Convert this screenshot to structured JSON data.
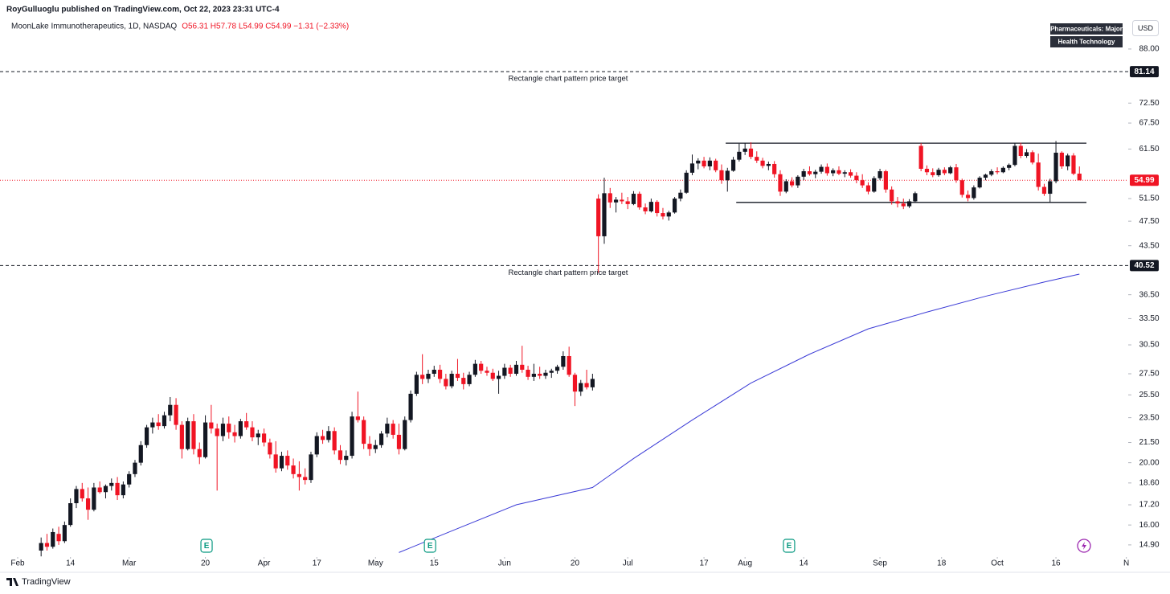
{
  "header": {
    "publisher": "RoyGulluoglu published on TradingView.com, Oct 22, 2023 23:31 UTC-4",
    "symbol": "MoonLake Immunotherapeutics, 1D, NASDAQ",
    "ohlc": "O56.31 H57.78 L54.99 C54.99 −1.31 (−2.33%)"
  },
  "tags": [
    "Pharmaceuticals: Major",
    "Health Technology"
  ],
  "currency": "USD",
  "footer": "TradingView",
  "chart_data": {
    "type": "candlestick",
    "log_scale": true,
    "up_color": "#131722",
    "down_color": "#f01424",
    "xlim": [
      -3.01,
      189.32
    ],
    "ylim": [
      14.39,
      96.2
    ],
    "xticks": [
      {
        "value": 0,
        "label": "Feb"
      },
      {
        "value": 9,
        "label": "14"
      },
      {
        "value": 19,
        "label": "Mar"
      },
      {
        "value": 32,
        "label": "20"
      },
      {
        "value": 42,
        "label": "Apr"
      },
      {
        "value": 51,
        "label": "17"
      },
      {
        "value": 61,
        "label": "May"
      },
      {
        "value": 71,
        "label": "15"
      },
      {
        "value": 83,
        "label": "Jun"
      },
      {
        "value": 95,
        "label": "20"
      },
      {
        "value": 104,
        "label": "Jul"
      },
      {
        "value": 117,
        "label": "17"
      },
      {
        "value": 124,
        "label": "Aug"
      },
      {
        "value": 134,
        "label": "14"
      },
      {
        "value": 147,
        "label": "Sep"
      },
      {
        "value": 157.5,
        "label": "18"
      },
      {
        "value": 167,
        "label": "Oct"
      },
      {
        "value": 177,
        "label": "16"
      },
      {
        "value": 189,
        "label": "N"
      }
    ],
    "yticks": [
      {
        "value": 88,
        "label": "88.00"
      },
      {
        "value": 72.5,
        "label": "72.50"
      },
      {
        "value": 67.5,
        "label": "67.50"
      },
      {
        "value": 61.5,
        "label": "61.50"
      },
      {
        "value": 51.5,
        "label": "51.50"
      },
      {
        "value": 47.5,
        "label": "47.50"
      },
      {
        "value": 43.5,
        "label": "43.50"
      },
      {
        "value": 36.5,
        "label": "36.50"
      },
      {
        "value": 33.5,
        "label": "33.50"
      },
      {
        "value": 30.5,
        "label": "30.50"
      },
      {
        "value": 27.5,
        "label": "27.50"
      },
      {
        "value": 25.5,
        "label": "25.50"
      },
      {
        "value": 23.5,
        "label": "23.50"
      },
      {
        "value": 21.5,
        "label": "21.50"
      },
      {
        "value": 20,
        "label": "20.00"
      },
      {
        "value": 18.6,
        "label": "18.60"
      },
      {
        "value": 17.2,
        "label": "17.20"
      },
      {
        "value": 16,
        "label": "16.00"
      },
      {
        "value": 14.9,
        "label": "14.90"
      }
    ],
    "x": [
      4,
      5,
      6,
      7,
      8,
      9,
      10,
      11,
      12,
      13,
      14,
      15,
      16,
      17,
      18,
      19,
      20,
      21,
      22,
      23,
      24,
      25,
      26,
      27,
      28,
      29,
      30,
      31,
      32,
      33,
      34,
      35,
      36,
      37,
      38,
      39,
      40,
      41,
      42,
      43,
      44,
      45,
      46,
      47,
      48,
      49,
      50,
      51,
      52,
      53,
      54,
      55,
      56,
      57,
      58,
      59,
      60,
      61,
      62,
      63,
      64,
      65,
      66,
      67,
      68,
      69,
      70,
      71,
      72,
      73,
      74,
      75,
      76,
      77,
      78,
      79,
      80,
      81,
      82,
      83,
      84,
      85,
      86,
      87,
      88,
      89,
      90,
      91,
      92,
      93,
      94,
      95,
      96,
      97,
      98,
      99,
      100,
      101,
      102,
      103,
      104,
      105,
      106,
      107,
      108,
      109,
      110,
      111,
      112,
      113,
      114,
      115,
      116,
      117,
      118,
      119,
      120,
      121,
      122,
      123,
      124,
      125,
      126,
      127,
      128,
      129,
      130,
      131,
      132,
      133,
      134,
      135,
      136,
      137,
      138,
      139,
      140,
      141,
      142,
      143,
      144,
      145,
      146,
      147,
      148,
      149,
      150,
      151,
      152,
      153,
      154,
      155,
      156,
      157,
      158,
      159,
      160,
      161,
      162,
      163,
      164,
      165,
      166,
      167,
      168,
      169,
      170,
      171,
      172,
      173,
      174,
      175,
      176,
      177,
      178,
      179,
      180,
      181
    ],
    "ohlc": [
      [
        14.6,
        15.3,
        14.3,
        15.0
      ],
      [
        15.0,
        15.5,
        14.6,
        14.8
      ],
      [
        14.8,
        15.8,
        14.7,
        15.6
      ],
      [
        15.5,
        15.9,
        14.9,
        15.1
      ],
      [
        15.1,
        16.2,
        15.0,
        16.0
      ],
      [
        16.0,
        17.6,
        15.9,
        17.3
      ],
      [
        17.3,
        18.4,
        17.0,
        18.2
      ],
      [
        18.2,
        18.6,
        17.4,
        17.6
      ],
      [
        17.6,
        18.3,
        16.3,
        16.9
      ],
      [
        16.9,
        18.6,
        16.8,
        18.3
      ],
      [
        18.3,
        18.7,
        17.9,
        18.0
      ],
      [
        18.0,
        18.5,
        17.6,
        18.4
      ],
      [
        18.4,
        18.9,
        18.1,
        18.6
      ],
      [
        18.6,
        19.0,
        17.5,
        17.8
      ],
      [
        17.8,
        18.7,
        17.6,
        18.5
      ],
      [
        18.5,
        19.4,
        18.3,
        19.2
      ],
      [
        19.2,
        20.2,
        19.0,
        20.0
      ],
      [
        20.0,
        21.6,
        19.8,
        21.3
      ],
      [
        21.3,
        22.9,
        21.1,
        22.7
      ],
      [
        22.7,
        23.5,
        22.2,
        23.1
      ],
      [
        23.1,
        23.8,
        22.5,
        22.8
      ],
      [
        22.8,
        24.0,
        22.6,
        23.7
      ],
      [
        23.7,
        25.3,
        23.2,
        24.6
      ],
      [
        24.6,
        25.2,
        22.5,
        22.9
      ],
      [
        22.9,
        23.2,
        20.3,
        21.0
      ],
      [
        21.0,
        23.5,
        20.9,
        23.2
      ],
      [
        23.2,
        23.8,
        20.6,
        21.0
      ],
      [
        21.0,
        21.5,
        19.9,
        20.4
      ],
      [
        20.4,
        23.7,
        20.3,
        23.1
      ],
      [
        23.1,
        24.6,
        22.2,
        22.6
      ],
      [
        22.6,
        23.0,
        18.1,
        22.0
      ],
      [
        22.0,
        23.5,
        21.6,
        23.0
      ],
      [
        23.0,
        23.6,
        21.8,
        22.3
      ],
      [
        22.3,
        22.9,
        21.5,
        22.0
      ],
      [
        22.0,
        23.4,
        21.8,
        23.2
      ],
      [
        23.2,
        23.9,
        22.5,
        22.7
      ],
      [
        22.7,
        23.2,
        21.6,
        21.9
      ],
      [
        21.9,
        22.5,
        21.3,
        22.2
      ],
      [
        22.2,
        22.6,
        21.2,
        21.5
      ],
      [
        21.5,
        21.8,
        20.3,
        20.6
      ],
      [
        20.6,
        21.6,
        19.3,
        19.6
      ],
      [
        19.6,
        20.8,
        19.4,
        20.5
      ],
      [
        20.5,
        20.9,
        19.5,
        19.8
      ],
      [
        19.8,
        20.3,
        18.9,
        19.2
      ],
      [
        19.2,
        20.1,
        18.1,
        19.0
      ],
      [
        19.0,
        19.6,
        18.5,
        18.8
      ],
      [
        18.8,
        20.8,
        18.6,
        20.6
      ],
      [
        20.6,
        22.3,
        20.4,
        22.0
      ],
      [
        22.0,
        22.5,
        21.4,
        21.7
      ],
      [
        21.7,
        22.8,
        21.5,
        22.4
      ],
      [
        22.4,
        22.7,
        20.6,
        20.9
      ],
      [
        20.9,
        21.3,
        19.9,
        20.2
      ],
      [
        20.2,
        20.9,
        19.8,
        20.5
      ],
      [
        20.5,
        24.0,
        20.3,
        23.6
      ],
      [
        23.6,
        25.8,
        23.1,
        23.3
      ],
      [
        23.3,
        23.6,
        21.0,
        21.4
      ],
      [
        21.4,
        22.0,
        20.5,
        21.0
      ],
      [
        21.0,
        21.7,
        20.7,
        21.3
      ],
      [
        21.3,
        22.4,
        21.1,
        22.2
      ],
      [
        22.2,
        23.5,
        21.9,
        23.0
      ],
      [
        23.0,
        23.3,
        21.8,
        22.1
      ],
      [
        22.1,
        23.0,
        20.6,
        21.0
      ],
      [
        21.0,
        23.6,
        20.9,
        23.3
      ],
      [
        23.3,
        25.9,
        23.1,
        25.6
      ],
      [
        25.6,
        27.7,
        25.4,
        27.4
      ],
      [
        27.4,
        29.5,
        26.5,
        27.0
      ],
      [
        27.0,
        27.9,
        26.6,
        27.5
      ],
      [
        27.5,
        28.3,
        27.2,
        27.9
      ],
      [
        27.9,
        28.4,
        26.6,
        27.0
      ],
      [
        27.0,
        27.5,
        26.0,
        26.3
      ],
      [
        26.3,
        27.8,
        26.1,
        27.5
      ],
      [
        27.5,
        29.0,
        26.8,
        27.1
      ],
      [
        27.1,
        27.6,
        26.0,
        26.5
      ],
      [
        26.5,
        27.7,
        26.3,
        27.4
      ],
      [
        27.4,
        28.9,
        27.2,
        28.5
      ],
      [
        28.5,
        28.8,
        27.5,
        27.8
      ],
      [
        27.8,
        28.2,
        27.3,
        27.6
      ],
      [
        27.6,
        28.0,
        26.8,
        27.0
      ],
      [
        27.0,
        27.8,
        25.6,
        27.3
      ],
      [
        27.3,
        28.5,
        27.0,
        28.1
      ],
      [
        28.1,
        28.4,
        27.2,
        27.5
      ],
      [
        27.5,
        28.8,
        27.3,
        28.4
      ],
      [
        28.4,
        30.4,
        27.6,
        27.9
      ],
      [
        27.9,
        28.3,
        26.9,
        27.2
      ],
      [
        27.2,
        28.5,
        26.8,
        27.5
      ],
      [
        27.5,
        28.2,
        27.0,
        27.3
      ],
      [
        27.3,
        27.9,
        27.0,
        27.6
      ],
      [
        27.6,
        28.0,
        27.1,
        27.8
      ],
      [
        27.8,
        28.4,
        27.5,
        28.2
      ],
      [
        28.2,
        29.8,
        27.9,
        29.3
      ],
      [
        29.3,
        30.3,
        27.2,
        27.4
      ],
      [
        27.4,
        27.6,
        24.5,
        25.8
      ],
      [
        25.8,
        26.9,
        25.4,
        26.6
      ],
      [
        26.6,
        27.9,
        26.0,
        26.2
      ],
      [
        26.2,
        27.5,
        25.9,
        27.0
      ],
      [
        51.5,
        52.3,
        39.5,
        45.0
      ],
      [
        45.0,
        55.5,
        43.8,
        52.5
      ],
      [
        52.5,
        53.5,
        49.8,
        50.8
      ],
      [
        50.8,
        51.8,
        49.0,
        51.3
      ],
      [
        51.3,
        52.6,
        50.5,
        51.0
      ],
      [
        51.0,
        51.8,
        49.6,
        50.5
      ],
      [
        50.5,
        52.9,
        50.3,
        52.4
      ],
      [
        52.4,
        52.8,
        49.5,
        49.9
      ],
      [
        49.9,
        50.6,
        48.7,
        49.2
      ],
      [
        49.2,
        51.5,
        49.0,
        50.9
      ],
      [
        50.9,
        51.2,
        48.3,
        48.9
      ],
      [
        48.9,
        49.8,
        47.8,
        48.3
      ],
      [
        48.3,
        49.3,
        47.6,
        49.0
      ],
      [
        49.0,
        51.8,
        48.8,
        51.5
      ],
      [
        51.5,
        53.2,
        51.0,
        52.6
      ],
      [
        52.6,
        57.0,
        52.4,
        56.5
      ],
      [
        56.5,
        60.3,
        56.0,
        58.4
      ],
      [
        58.4,
        59.5,
        57.2,
        59.0
      ],
      [
        59.0,
        59.8,
        57.4,
        57.8
      ],
      [
        57.8,
        59.7,
        57.0,
        59.0
      ],
      [
        59.0,
        59.4,
        56.6,
        57.0
      ],
      [
        57.0,
        58.2,
        54.3,
        55.0
      ],
      [
        55.0,
        57.5,
        52.8,
        56.9
      ],
      [
        56.9,
        59.8,
        56.7,
        59.2
      ],
      [
        59.2,
        62.7,
        58.8,
        60.9
      ],
      [
        60.9,
        62.9,
        60.2,
        61.6
      ],
      [
        61.6,
        63.0,
        59.3,
        59.8
      ],
      [
        59.8,
        61.0,
        58.5,
        59.0
      ],
      [
        59.0,
        59.6,
        57.4,
        57.9
      ],
      [
        57.9,
        58.8,
        57.0,
        58.3
      ],
      [
        58.3,
        58.9,
        55.5,
        56.2
      ],
      [
        56.2,
        57.0,
        52.0,
        52.8
      ],
      [
        52.8,
        55.2,
        52.5,
        54.8
      ],
      [
        54.8,
        55.6,
        53.6,
        54.0
      ],
      [
        54.0,
        56.0,
        53.5,
        55.7
      ],
      [
        55.7,
        57.3,
        55.0,
        56.8
      ],
      [
        56.8,
        57.8,
        55.9,
        56.2
      ],
      [
        56.2,
        57.1,
        55.4,
        56.7
      ],
      [
        56.7,
        58.2,
        56.3,
        57.7
      ],
      [
        57.7,
        58.4,
        55.9,
        56.4
      ],
      [
        56.4,
        57.4,
        55.8,
        57.0
      ],
      [
        57.0,
        57.8,
        56.0,
        56.3
      ],
      [
        56.3,
        57.0,
        55.6,
        56.6
      ],
      [
        56.6,
        57.2,
        55.5,
        55.9
      ],
      [
        55.9,
        56.6,
        54.4,
        55.0
      ],
      [
        55.0,
        56.2,
        53.5,
        54.0
      ],
      [
        54.0,
        54.6,
        52.3,
        52.8
      ],
      [
        52.8,
        55.8,
        52.6,
        55.4
      ],
      [
        55.4,
        57.3,
        55.0,
        56.8
      ],
      [
        56.8,
        57.1,
        52.6,
        53.2
      ],
      [
        53.2,
        53.8,
        50.4,
        51.0
      ],
      [
        51.0,
        51.8,
        49.9,
        50.6
      ],
      [
        50.6,
        51.5,
        49.6,
        50.1
      ],
      [
        50.1,
        51.4,
        49.8,
        51.0
      ],
      [
        51.0,
        52.8,
        50.8,
        52.5
      ],
      [
        62.2,
        62.8,
        56.8,
        57.3
      ],
      [
        57.3,
        58.0,
        56.0,
        56.6
      ],
      [
        56.6,
        57.4,
        55.6,
        56.0
      ],
      [
        56.0,
        57.5,
        55.7,
        57.1
      ],
      [
        57.1,
        57.6,
        56.0,
        56.4
      ],
      [
        56.4,
        57.9,
        56.2,
        57.6
      ],
      [
        57.6,
        58.3,
        54.5,
        55.0
      ],
      [
        55.0,
        55.3,
        51.7,
        52.2
      ],
      [
        52.2,
        53.0,
        51.0,
        51.6
      ],
      [
        51.6,
        54.0,
        51.3,
        53.6
      ],
      [
        53.6,
        55.8,
        53.4,
        55.5
      ],
      [
        55.5,
        56.3,
        55.0,
        56.1
      ],
      [
        56.1,
        57.2,
        55.8,
        56.8
      ],
      [
        56.8,
        57.6,
        56.2,
        56.6
      ],
      [
        56.6,
        57.8,
        56.4,
        57.5
      ],
      [
        57.5,
        58.4,
        57.0,
        58.1
      ],
      [
        58.1,
        62.8,
        57.8,
        62.2
      ],
      [
        62.2,
        62.9,
        59.5,
        60.0
      ],
      [
        60.0,
        61.5,
        59.6,
        60.8
      ],
      [
        60.8,
        61.2,
        58.2,
        58.6
      ],
      [
        58.6,
        60.5,
        53.0,
        53.7
      ],
      [
        53.7,
        54.3,
        52.0,
        52.4
      ],
      [
        52.4,
        55.3,
        50.7,
        54.8
      ],
      [
        54.8,
        63.3,
        54.4,
        60.7
      ],
      [
        60.7,
        61.0,
        57.3,
        57.8
      ],
      [
        57.8,
        60.5,
        57.0,
        60.1
      ],
      [
        60.1,
        60.6,
        56.0,
        56.3
      ],
      [
        56.31,
        57.78,
        54.99,
        54.99
      ]
    ],
    "moving_average": {
      "color": "#3a3ad6",
      "x": [
        65,
        75,
        85,
        98,
        105,
        115,
        125,
        135,
        145,
        155,
        165,
        175,
        181
      ],
      "values": [
        14.5,
        15.8,
        17.2,
        18.3,
        20.3,
        23.3,
        26.6,
        29.5,
        32.3,
        34.3,
        36.3,
        38.2,
        39.3
      ]
    },
    "last_price": {
      "value": 54.99,
      "color": "#f01424"
    },
    "levels": [
      {
        "value": 81.14,
        "label": "Rectangle chart pattern price target"
      },
      {
        "value": 40.52,
        "label": "Rectangle chart pattern price target"
      }
    ],
    "rectangle": {
      "top": 62.8,
      "bottom": 50.8,
      "top_x": [
        120.7,
        182.2
      ],
      "bottom_x": [
        122.5,
        182.2
      ]
    },
    "events": [
      {
        "label": "E",
        "x": 32.2
      },
      {
        "label": "E",
        "x": 70.3
      },
      {
        "label": "E",
        "x": 131.5
      }
    ]
  }
}
